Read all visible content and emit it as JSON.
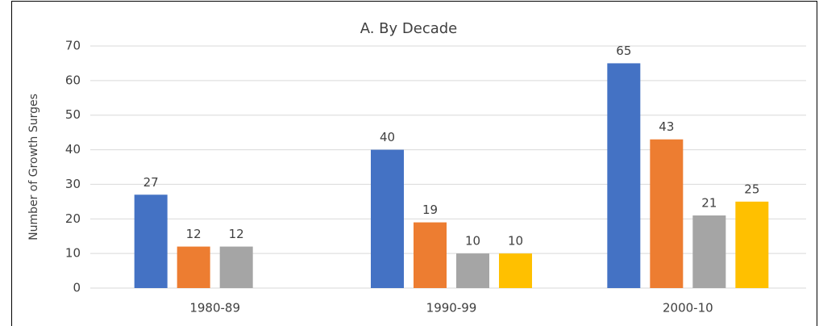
{
  "chart_data": {
    "type": "bar",
    "title": "A. By Decade",
    "y_label": "Number of Growth Surges",
    "categories": [
      "1980-89",
      "1990-99",
      "2000-10"
    ],
    "series": [
      {
        "color": "#4472c4",
        "values": [
          27,
          40,
          65
        ]
      },
      {
        "color": "#ed7d31",
        "values": [
          12,
          19,
          43
        ]
      },
      {
        "color": "#a5a5a5",
        "values": [
          12,
          10,
          21
        ]
      },
      {
        "color": "#ffc000",
        "values": [
          null,
          10,
          25
        ]
      }
    ],
    "ylim": [
      0,
      70
    ],
    "yticks": [
      0,
      10,
      20,
      30,
      40,
      50,
      60,
      70
    ],
    "grid": true,
    "data_labels": true
  }
}
